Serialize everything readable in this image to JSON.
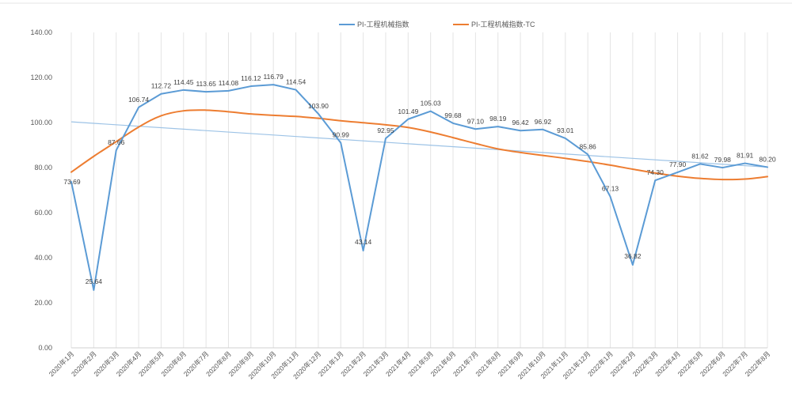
{
  "chart_data": {
    "type": "line",
    "categories": [
      "2020年1月",
      "2020年2月",
      "2020年3月",
      "2020年4月",
      "2020年5月",
      "2020年6月",
      "2020年7月",
      "2020年8月",
      "2020年9月",
      "2020年10月",
      "2020年11月",
      "2020年12月",
      "2021年1月",
      "2021年2月",
      "2021年3月",
      "2021年4月",
      "2021年5月",
      "2021年6月",
      "2021年7月",
      "2021年8月",
      "2021年9月",
      "2021年10月",
      "2021年11月",
      "2021年12月",
      "2022年1月",
      "2022年2月",
      "2022年3月",
      "2022年4月",
      "2022年5月",
      "2022年6月",
      "2022年7月",
      "2022年8月"
    ],
    "series": [
      {
        "name": "PI-工程机械指数",
        "color": "#5b9bd5",
        "values": [
          73.69,
          25.64,
          87.66,
          106.74,
          112.72,
          114.45,
          113.65,
          114.08,
          116.12,
          116.79,
          114.54,
          103.9,
          90.99,
          43.14,
          92.95,
          101.49,
          105.03,
          99.68,
          97.1,
          98.19,
          96.42,
          96.92,
          93.01,
          85.86,
          67.13,
          36.82,
          74.3,
          77.9,
          81.62,
          79.98,
          81.91,
          80.2
        ],
        "labels": [
          "73.69",
          "25.64",
          "87.66",
          "106.74",
          "112.72",
          "114.45",
          "113.65",
          "114.08",
          "116.12",
          "116.79",
          "114.54",
          "103.90",
          "90.99",
          "43.14",
          "92.95",
          "101.49",
          "105.03",
          "99.68",
          "97.10",
          "98.19",
          "96.42",
          "96.92",
          "93.01",
          "85.86",
          "67.13",
          "36.82",
          "74.30",
          "77.90",
          "81.62",
          "79.98",
          "81.91",
          "80.20"
        ]
      },
      {
        "name": "PI-工程机械指数-TC",
        "color": "#ed7d31",
        "values": [
          78.0,
          85.0,
          91.5,
          98.0,
          103.0,
          105.2,
          105.5,
          104.8,
          103.8,
          103.2,
          102.7,
          101.9,
          100.8,
          99.9,
          99.0,
          97.8,
          95.8,
          93.3,
          90.7,
          88.3,
          86.7,
          85.4,
          84.1,
          82.7,
          81.1,
          79.3,
          77.6,
          76.2,
          75.2,
          74.7,
          74.9,
          76.0
        ]
      }
    ],
    "trendline": {
      "color": "#9dc3e6",
      "start": 100.3,
      "end": 80.2
    },
    "ylim": [
      0,
      140
    ],
    "yticks": [
      "0.00",
      "20.00",
      "40.00",
      "60.00",
      "80.00",
      "100.00",
      "120.00",
      "140.00"
    ],
    "ytick_values": [
      0,
      20,
      40,
      60,
      80,
      100,
      120,
      140
    ],
    "grid": "vertical",
    "legend_position": "top-center",
    "title": "",
    "xlabel": "",
    "ylabel": ""
  }
}
